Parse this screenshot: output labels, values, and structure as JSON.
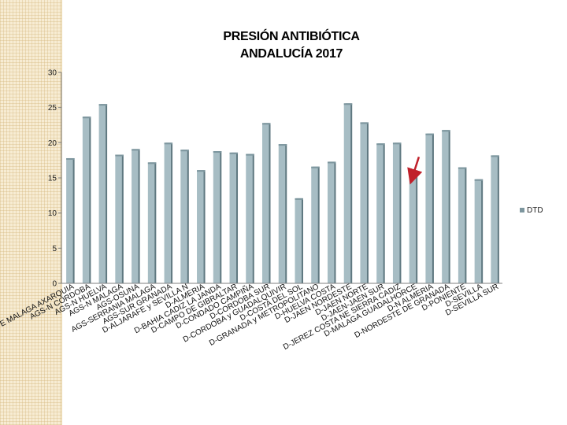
{
  "colors": {
    "bar": "#a7bdc4",
    "bar_highlight": "#7d969e",
    "bar_shadow": "#5f7880",
    "axis": "#7f7f7f",
    "arrow": "#c0202a"
  },
  "title_lines": [
    "PRESIÓN ANTIBIÓTICA",
    "ANDALUCÍA 2017"
  ],
  "chart_data": {
    "type": "bar",
    "title": "PRESIÓN ANTIBIÓTICA ANDALUCÍA 2017",
    "xlabel": "",
    "ylabel": "",
    "ylim": [
      0,
      30
    ],
    "yticks": [
      0,
      5,
      10,
      15,
      20,
      25,
      30
    ],
    "legend": [
      "DTD"
    ],
    "legend_position": "right",
    "categories": [
      "AGS ESTE MALAGA AXARQUIA",
      "AGS-N CORDOBA",
      "AGS-N HUELVA",
      "AGS-N MALAGA",
      "AGS-OSUNA",
      "AGS-SERRANIA MALAGA",
      "AGS-SUR GRANADA",
      "D-ALJARAFE y SEVILLA N",
      "D-ALMERIA",
      "D-BAHIA CADIZ LA JANDA",
      "D-CAMPO DE GIBRALTAR",
      "D-CONDADO CAMPIÑA",
      "D-CORDOBA SUR",
      "D-CORDOBA y GUADALQUIVIR",
      "D-COSTA DEL SOL",
      "D-GRANADA y METROPOLITANO",
      "D-HUELVA COSTA",
      "D-JAEN NORDESTE",
      "D-JAEN NORTE",
      "D-JAEN-JAEN SUR",
      "D-JEREZ COSTA NE SIERRA CADIZ",
      "D-MALAGA GUADALHORCE",
      "D-N ALMERIA",
      "D-NORDESTE DE GRANADA",
      "D-PONIENTE",
      "D-SEVILLA",
      "D-SEVILLA SUR"
    ],
    "series": [
      {
        "name": "DTD",
        "values": [
          17.8,
          23.7,
          25.5,
          18.3,
          19.1,
          17.2,
          20.0,
          19.0,
          16.1,
          18.8,
          18.6,
          18.4,
          22.8,
          19.8,
          12.1,
          16.6,
          17.3,
          25.6,
          22.9,
          19.9,
          20.0,
          15.3,
          21.3,
          21.8,
          16.5,
          14.8,
          18.2
        ]
      }
    ],
    "annotation": {
      "type": "arrow",
      "points_to": "D-MALAGA GUADALHORCE"
    }
  }
}
